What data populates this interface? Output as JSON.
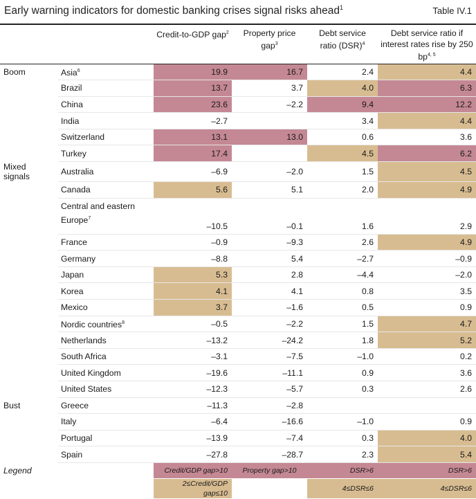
{
  "header": {
    "title": "Early warning indicators for domestic banking crises signal risks ahead",
    "title_note": "1",
    "table_id": "Table IV.1"
  },
  "columns": {
    "credit": "Credit-to-GDP gap",
    "credit_note": "2",
    "property": "Property price gap",
    "property_note": "3",
    "dsr": "Debt service ratio (DSR)",
    "dsr_note": "4",
    "dsr250": "Debt service ratio if interest rates rise by 250 bp",
    "dsr250_note": "4, 5"
  },
  "groups": {
    "boom": "Boom",
    "mixed": "Mixed signals",
    "bust": "Bust"
  },
  "rows": [
    {
      "country": "Asia",
      "note": "6",
      "credit": "19.9",
      "property": "16.7",
      "dsr": "2.4",
      "dsr250": "4.4"
    },
    {
      "country": "Brazil",
      "note": "",
      "credit": "13.7",
      "property": "3.7",
      "dsr": "4.0",
      "dsr250": "6.3"
    },
    {
      "country": "China",
      "note": "",
      "credit": "23.6",
      "property": "–2.2",
      "dsr": "9.4",
      "dsr250": "12.2"
    },
    {
      "country": "India",
      "note": "",
      "credit": "–2.7",
      "property": "",
      "dsr": "3.4",
      "dsr250": "4.4"
    },
    {
      "country": "Switzerland",
      "note": "",
      "credit": "13.1",
      "property": "13.0",
      "dsr": "0.6",
      "dsr250": "3.6"
    },
    {
      "country": "Turkey",
      "note": "",
      "credit": "17.4",
      "property": "",
      "dsr": "4.5",
      "dsr250": "6.2"
    },
    {
      "country": "Australia",
      "note": "",
      "credit": "–6.9",
      "property": "–2.0",
      "dsr": "1.5",
      "dsr250": "4.5"
    },
    {
      "country": "Canada",
      "note": "",
      "credit": "5.6",
      "property": "5.1",
      "dsr": "2.0",
      "dsr250": "4.9"
    },
    {
      "country": "Central and eastern Europe",
      "note": "7",
      "credit": "–10.5",
      "property": "–0.1",
      "dsr": "1.6",
      "dsr250": "2.9"
    },
    {
      "country": "France",
      "note": "",
      "credit": "–0.9",
      "property": "–9.3",
      "dsr": "2.6",
      "dsr250": "4.9"
    },
    {
      "country": "Germany",
      "note": "",
      "credit": "–8.8",
      "property": "5.4",
      "dsr": "–2.7",
      "dsr250": "–0.9"
    },
    {
      "country": "Japan",
      "note": "",
      "credit": "5.3",
      "property": "2.8",
      "dsr": "–4.4",
      "dsr250": "–2.0"
    },
    {
      "country": "Korea",
      "note": "",
      "credit": "4.1",
      "property": "4.1",
      "dsr": "0.8",
      "dsr250": "3.5"
    },
    {
      "country": "Mexico",
      "note": "",
      "credit": "3.7",
      "property": "–1.6",
      "dsr": "0.5",
      "dsr250": "0.9"
    },
    {
      "country": "Nordic countries",
      "note": "8",
      "credit": "–0.5",
      "property": "–2.2",
      "dsr": "1.5",
      "dsr250": "4.7"
    },
    {
      "country": "Netherlands",
      "note": "",
      "credit": "–13.2",
      "property": "–24.2",
      "dsr": "1.8",
      "dsr250": "5.2"
    },
    {
      "country": "South Africa",
      "note": "",
      "credit": "–3.1",
      "property": "–7.5",
      "dsr": "–1.0",
      "dsr250": "0.2"
    },
    {
      "country": "United Kingdom",
      "note": "",
      "credit": "–19.6",
      "property": "–11.1",
      "dsr": "0.9",
      "dsr250": "3.6"
    },
    {
      "country": "United States",
      "note": "",
      "credit": "–12.3",
      "property": "–5.7",
      "dsr": "0.3",
      "dsr250": "2.6"
    },
    {
      "country": "Greece",
      "note": "",
      "credit": "–11.3",
      "property": "–2.8",
      "dsr": "",
      "dsr250": ""
    },
    {
      "country": "Italy",
      "note": "",
      "credit": "–6.4",
      "property": "–16.6",
      "dsr": "–1.0",
      "dsr250": "0.9"
    },
    {
      "country": "Portugal",
      "note": "",
      "credit": "–13.9",
      "property": "–7.4",
      "dsr": "0.3",
      "dsr250": "4.0"
    },
    {
      "country": "Spain",
      "note": "",
      "credit": "–27.8",
      "property": "–28.7",
      "dsr": "2.3",
      "dsr250": "5.4"
    }
  ],
  "legend": {
    "label": "Legend",
    "credit_high": "Credit/GDP gap>10",
    "property_high": "Property gap>10",
    "dsr_high": "DSR>6",
    "dsr250_high": "DSR>6",
    "credit_med": "2≤Credit/GDP gap≤10",
    "dsr_med": "4≤DSR≤6",
    "dsr250_med": "4≤DSR≤6"
  },
  "colors": {
    "high_risk": "#c48894",
    "medium_risk": "#d8bc91"
  }
}
